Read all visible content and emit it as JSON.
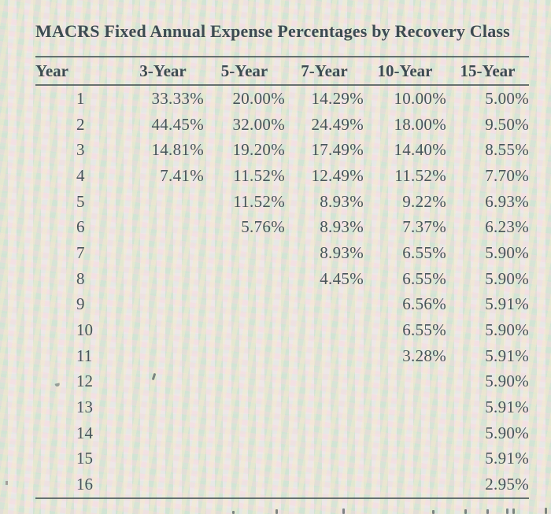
{
  "title": "MACRS Fixed Annual Expense Percentages by Recovery Class",
  "table": {
    "columns": [
      "Year",
      "3-Year",
      "5-Year",
      "7-Year",
      "10-Year",
      "15-Year"
    ],
    "rows": [
      [
        "1",
        "33.33%",
        "20.00%",
        "14.29%",
        "10.00%",
        "5.00%"
      ],
      [
        "2",
        "44.45%",
        "32.00%",
        "24.49%",
        "18.00%",
        "9.50%"
      ],
      [
        "3",
        "14.81%",
        "19.20%",
        "17.49%",
        "14.40%",
        "8.55%"
      ],
      [
        "4",
        "7.41%",
        "11.52%",
        "12.49%",
        "11.52%",
        "7.70%"
      ],
      [
        "5",
        "",
        "11.52%",
        "8.93%",
        "9.22%",
        "6.93%"
      ],
      [
        "6",
        "",
        "5.76%",
        "8.93%",
        "7.37%",
        "6.23%"
      ],
      [
        "7",
        "",
        "",
        "8.93%",
        "6.55%",
        "5.90%"
      ],
      [
        "8",
        "",
        "",
        "4.45%",
        "6.55%",
        "5.90%"
      ],
      [
        "9",
        "",
        "",
        "",
        "6.56%",
        "5.91%"
      ],
      [
        "10",
        "",
        "",
        "",
        "6.55%",
        "5.90%"
      ],
      [
        "11",
        "",
        "",
        "",
        "3.28%",
        "5.91%"
      ],
      [
        "12",
        "",
        "",
        "",
        "",
        "5.90%"
      ],
      [
        "13",
        "",
        "",
        "",
        "",
        "5.91%"
      ],
      [
        "14",
        "",
        "",
        "",
        "",
        "5.90%"
      ],
      [
        "15",
        "",
        "",
        "",
        "",
        "5.91%"
      ],
      [
        "16",
        "",
        "",
        "",
        "",
        "2.95%"
      ]
    ]
  },
  "colors": {
    "text": "#47555a",
    "heading_text": "#3d4b52",
    "rule": "#4f5c5c",
    "background_pink": "#f6e5e3",
    "background_mint": "#bde3cc",
    "background_yellow": "#f4eec9",
    "background_blue": "#dbecf5"
  }
}
